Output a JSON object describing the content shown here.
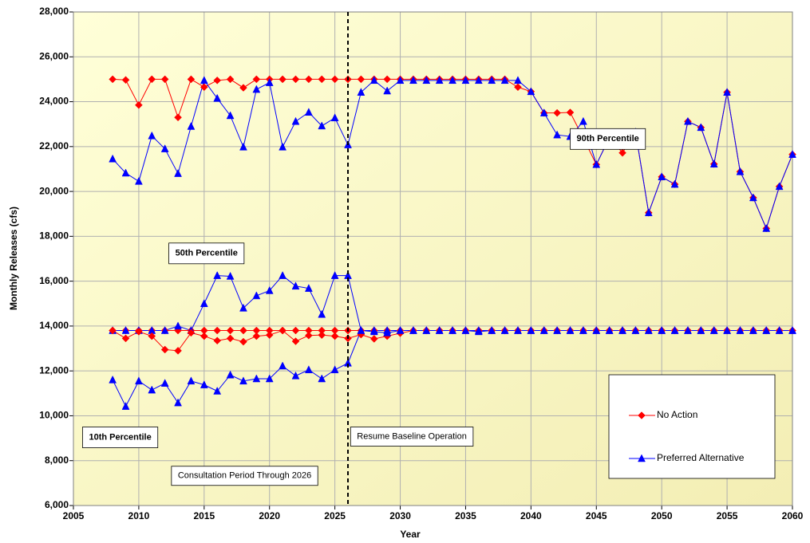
{
  "chart_data": {
    "type": "line",
    "x": [
      2008,
      2009,
      2010,
      2011,
      2012,
      2013,
      2014,
      2015,
      2016,
      2017,
      2018,
      2019,
      2020,
      2021,
      2022,
      2023,
      2024,
      2025,
      2026,
      2027,
      2028,
      2029,
      2030,
      2031,
      2032,
      2033,
      2034,
      2035,
      2036,
      2037,
      2038,
      2039,
      2040,
      2041,
      2042,
      2043,
      2044,
      2045,
      2046,
      2047,
      2048,
      2049,
      2050,
      2051,
      2052,
      2053,
      2054,
      2055,
      2056,
      2057,
      2058,
      2059,
      2060
    ],
    "series": [
      {
        "name": "No Action",
        "color": "#ff0000",
        "marker": "diamond",
        "values": [
          25000,
          24970,
          23850,
          25000,
          25000,
          23300,
          25000,
          24650,
          24950,
          25000,
          24620,
          25000,
          25000,
          25000,
          25000,
          25000,
          25000,
          25000,
          25000,
          25000,
          25000,
          25000,
          25000,
          25000,
          25000,
          25000,
          25000,
          25000,
          25000,
          25000,
          25000,
          24650,
          24450,
          23500,
          23500,
          23520,
          22380,
          21200,
          22400,
          21720,
          22650,
          19050,
          20650,
          20320,
          23120,
          22850,
          21220,
          24420,
          20880,
          19720,
          18350,
          20220,
          21650
        ]
      },
      {
        "name": "Preferred Alternative",
        "color": "#0000ff",
        "marker": "triangle",
        "values": [
          21450,
          20820,
          20450,
          22480,
          21900,
          20800,
          22900,
          24950,
          24150,
          23380,
          21980,
          24550,
          24850,
          21980,
          23120,
          23530,
          22920,
          23280,
          22080,
          24420,
          24950,
          24480,
          24950,
          24950,
          24950,
          24950,
          24950,
          24950,
          24950,
          24950,
          24950,
          24950,
          24450,
          23500,
          22520,
          22450,
          23120,
          21200,
          22400,
          22200,
          22650,
          19050,
          20650,
          20320,
          23120,
          22850,
          21220,
          24420,
          20880,
          19720,
          18350,
          20220,
          21650
        ]
      },
      {
        "name": "No Action",
        "color": "#ff0000",
        "marker": "diamond",
        "values": [
          13800,
          13800,
          13800,
          13800,
          13800,
          13800,
          13800,
          13800,
          13800,
          13800,
          13800,
          13800,
          13800,
          13800,
          13800,
          13800,
          13800,
          13800,
          13800,
          13800,
          13800,
          13800,
          13800,
          13800,
          13800,
          13800,
          13800,
          13800,
          13800,
          13800,
          13800,
          13800,
          13800,
          13800,
          13800,
          13800,
          13800,
          13800,
          13800,
          13800,
          13800,
          13800,
          13800,
          13800,
          13800,
          13800,
          13800,
          13800,
          13800,
          13800,
          13800,
          13800,
          13800
        ]
      },
      {
        "name": "Preferred Alternative",
        "color": "#0000ff",
        "marker": "triangle",
        "values": [
          13800,
          13800,
          13800,
          13800,
          13800,
          14000,
          13800,
          15000,
          16250,
          16220,
          14800,
          15350,
          15580,
          16250,
          15780,
          15680,
          14520,
          16250,
          16250,
          13800,
          13800,
          13800,
          13800,
          13800,
          13800,
          13800,
          13800,
          13800,
          13750,
          13800,
          13800,
          13800,
          13800,
          13800,
          13800,
          13800,
          13800,
          13800,
          13800,
          13800,
          13800,
          13800,
          13800,
          13800,
          13800,
          13800,
          13800,
          13800,
          13800,
          13800,
          13800,
          13800,
          13800
        ]
      },
      {
        "name": "No Action",
        "color": "#ff0000",
        "marker": "diamond",
        "values": [
          13800,
          13450,
          13750,
          13550,
          12950,
          12900,
          13700,
          13550,
          13350,
          13450,
          13300,
          13550,
          13600,
          13800,
          13320,
          13580,
          13600,
          13550,
          13450,
          13620,
          13430,
          13550,
          13680,
          13800,
          13800,
          13800,
          13800,
          13800,
          13800,
          13800,
          13800,
          13800,
          13800,
          13800,
          13800,
          13800,
          13800,
          13800,
          13800,
          13800,
          13800,
          13800,
          13800,
          13800,
          13800,
          13800,
          13800,
          13800,
          13800,
          13800,
          13800,
          13800,
          13800
        ]
      },
      {
        "name": "Preferred Alternative",
        "color": "#0000ff",
        "marker": "triangle",
        "values": [
          11600,
          10420,
          11550,
          11150,
          11450,
          10580,
          11550,
          11380,
          11100,
          11820,
          11550,
          11650,
          11650,
          12220,
          11780,
          12050,
          11650,
          12050,
          12350,
          13800,
          13750,
          13700,
          13800,
          13800,
          13800,
          13800,
          13800,
          13800,
          13800,
          13800,
          13800,
          13800,
          13800,
          13800,
          13800,
          13800,
          13800,
          13800,
          13800,
          13800,
          13800,
          13800,
          13800,
          13800,
          13800,
          13800,
          13800,
          13800,
          13800,
          13800,
          13800,
          13800,
          13800
        ]
      }
    ],
    "xlabel": "Year",
    "ylabel": "Monthly Releases (cfs)",
    "xlim": [
      2005,
      2060
    ],
    "ylim": [
      6000,
      28000
    ],
    "xticks": [
      2005,
      2010,
      2015,
      2020,
      2025,
      2030,
      2035,
      2040,
      2045,
      2050,
      2055,
      2060
    ],
    "yticks": [
      {
        "value": 6000,
        "label": "6,000"
      },
      {
        "value": 8000,
        "label": "8,000"
      },
      {
        "value": 10000,
        "label": "10,000"
      },
      {
        "value": 12000,
        "label": "12,000"
      },
      {
        "value": 14000,
        "label": "14,000"
      },
      {
        "value": 16000,
        "label": "16,000"
      },
      {
        "value": 18000,
        "label": "18,000"
      },
      {
        "value": 20000,
        "label": "20,000"
      },
      {
        "value": 22000,
        "label": "22,000"
      },
      {
        "value": 24000,
        "label": "24,000"
      },
      {
        "value": 26000,
        "label": "26,000"
      },
      {
        "value": 28000,
        "label": "28,000"
      }
    ],
    "grid": true,
    "legend": "lower right",
    "vline": 2026,
    "annotations": [
      {
        "text": "90th Percentile",
        "x": 2043,
        "y": 22800
      },
      {
        "text": "50th Percentile",
        "x": 2012.3,
        "y": 17700
      },
      {
        "text": "10th Percentile",
        "x": 2005.7,
        "y": 9500
      },
      {
        "text": "Resume Baseline Operation",
        "x": 2026.2,
        "y": 9500
      },
      {
        "text": "Consultation Period Through 2026",
        "x": 2012.5,
        "y": 7750
      }
    ]
  }
}
